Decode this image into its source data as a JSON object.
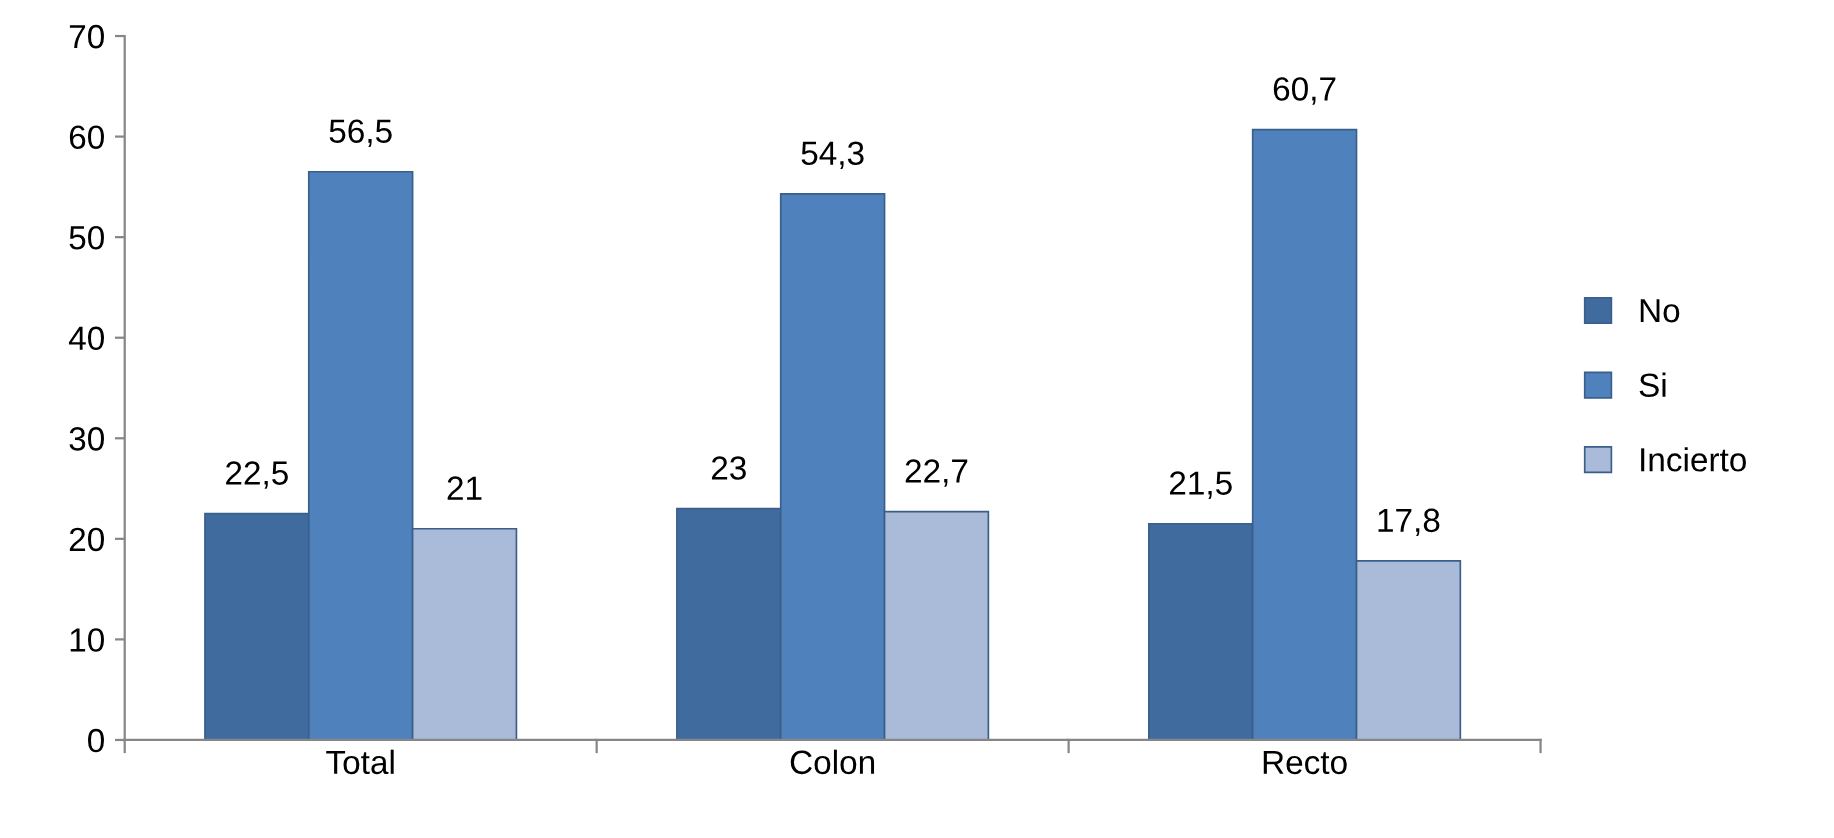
{
  "chart_data": {
    "type": "bar",
    "categories": [
      "Total",
      "Colon",
      "Recto"
    ],
    "series": [
      {
        "name": "No",
        "color": "#3f6b9f",
        "values": [
          22.5,
          23,
          21.5
        ],
        "value_labels": [
          "22,5",
          "23",
          "21,5"
        ]
      },
      {
        "name": "Si",
        "color": "#4f81bd",
        "values": [
          56.5,
          54.3,
          60.7
        ],
        "value_labels": [
          "56,5",
          "54,3",
          "60,7"
        ]
      },
      {
        "name": "Incierto",
        "color": "#aabbd9",
        "values": [
          21,
          22.7,
          17.8
        ],
        "value_labels": [
          "21",
          "22,7",
          "17,8"
        ]
      }
    ],
    "ylim": [
      0,
      70
    ],
    "yticks": [
      0,
      10,
      20,
      30,
      40,
      50,
      60,
      70
    ],
    "grid": false,
    "legend": "right"
  }
}
